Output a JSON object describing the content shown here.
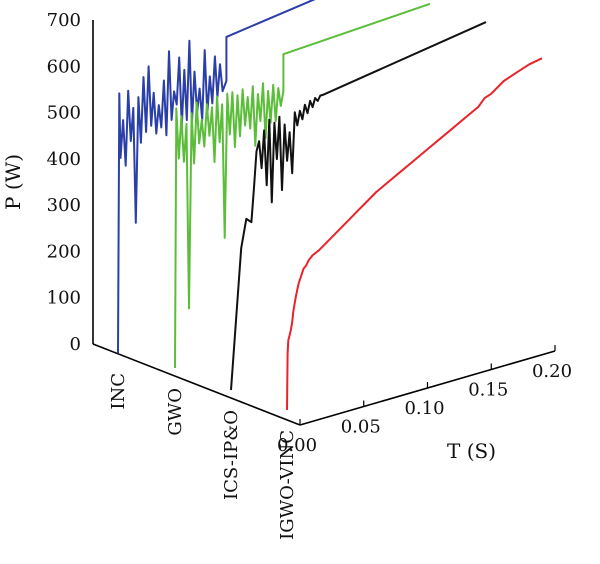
{
  "chart_data": {
    "type": "line",
    "projection": "3d-waterfall",
    "ylabel": "P (W)",
    "xlabel": "T (S)",
    "ylim": [
      0,
      700
    ],
    "xlim": [
      0,
      0.2
    ],
    "y_ticks": [
      "0",
      "100",
      "200",
      "300",
      "400",
      "500",
      "600",
      "700"
    ],
    "x_ticks": [
      "0.00",
      "0.05",
      "0.10",
      "0.15",
      "0.20"
    ],
    "categories": [
      "INC",
      "GWO",
      "ICS-IP&O",
      "IGWO-VINC"
    ],
    "series": [
      {
        "name": "INC",
        "color": "#2b3fa8",
        "x": [
          0,
          0.001,
          0.002,
          0.004,
          0.006,
          0.008,
          0.01,
          0.012,
          0.014,
          0.016,
          0.018,
          0.02,
          0.022,
          0.024,
          0.026,
          0.028,
          0.03,
          0.032,
          0.034,
          0.036,
          0.038,
          0.04,
          0.042,
          0.044,
          0.046,
          0.048,
          0.05,
          0.052,
          0.054,
          0.056,
          0.058,
          0.06,
          0.062,
          0.064,
          0.066,
          0.068,
          0.07,
          0.072,
          0.074,
          0.076,
          0.078,
          0.08,
          0.082,
          0.085,
          0.085,
          0.2
        ],
        "y": [
          0,
          560,
          420,
          500,
          400,
          560,
          450,
          520,
          270,
          540,
          440,
          580,
          460,
          600,
          470,
          540,
          450,
          510,
          460,
          560,
          440,
          620,
          470,
          530,
          500,
          600,
          450,
          570,
          460,
          630,
          450,
          560,
          470,
          520,
          450,
          600,
          460,
          540,
          480,
          580,
          490,
          560,
          500,
          520,
          615,
          658
        ]
      },
      {
        "name": "GWO",
        "color": "#5cbd3a",
        "x": [
          0,
          0.001,
          0.003,
          0.005,
          0.007,
          0.009,
          0.011,
          0.013,
          0.015,
          0.017,
          0.019,
          0.021,
          0.023,
          0.025,
          0.027,
          0.029,
          0.031,
          0.033,
          0.035,
          0.037,
          0.039,
          0.041,
          0.043,
          0.045,
          0.047,
          0.049,
          0.051,
          0.053,
          0.055,
          0.057,
          0.059,
          0.061,
          0.063,
          0.065,
          0.067,
          0.069,
          0.071,
          0.073,
          0.075,
          0.077,
          0.079,
          0.081,
          0.083,
          0.085,
          0.085,
          0.2
        ],
        "y": [
          0,
          560,
          450,
          540,
          440,
          520,
          120,
          540,
          430,
          560,
          470,
          520,
          460,
          550,
          480,
          540,
          420,
          560,
          460,
          540,
          250,
          560,
          470,
          560,
          440,
          550,
          460,
          560,
          480,
          540,
          470,
          560,
          430,
          540,
          480,
          560,
          440,
          540,
          470,
          550,
          470,
          540,
          500,
          530,
          610,
          627
        ]
      },
      {
        "name": "ICS-IP&O",
        "color": "#111111",
        "x": [
          0,
          0.004,
          0.008,
          0.012,
          0.016,
          0.018,
          0.02,
          0.022,
          0.024,
          0.026,
          0.028,
          0.03,
          0.032,
          0.034,
          0.036,
          0.038,
          0.04,
          0.042,
          0.044,
          0.046,
          0.048,
          0.05,
          0.052,
          0.054,
          0.056,
          0.058,
          0.06,
          0.062,
          0.064,
          0.066,
          0.068,
          0.07,
          0.072,
          0.2
        ],
        "y": [
          0,
          150,
          300,
          360,
          350,
          420,
          500,
          520,
          460,
          540,
          420,
          560,
          380,
          550,
          470,
          560,
          400,
          540,
          460,
          520,
          430,
          560,
          530,
          560,
          540,
          570,
          550,
          575,
          560,
          578,
          570,
          580,
          580,
          635
        ]
      },
      {
        "name": "IGWO-VINC",
        "color": "#e8232a",
        "x": [
          0,
          0.0005,
          0.001,
          0.002,
          0.003,
          0.004,
          0.005,
          0.007,
          0.009,
          0.011,
          0.013,
          0.015,
          0.017,
          0.02,
          0.025,
          0.03,
          0.035,
          0.04,
          0.045,
          0.05,
          0.055,
          0.06,
          0.065,
          0.07,
          0.08,
          0.09,
          0.1,
          0.11,
          0.12,
          0.13,
          0.14,
          0.15,
          0.155,
          0.16,
          0.17,
          0.18,
          0.19,
          0.2
        ],
        "y": [
          0,
          120,
          150,
          160,
          170,
          185,
          210,
          240,
          265,
          280,
          295,
          300,
          310,
          318,
          325,
          335,
          345,
          355,
          365,
          375,
          385,
          395,
          405,
          415,
          430,
          445,
          460,
          475,
          490,
          505,
          520,
          535,
          550,
          555,
          575,
          585,
          595,
          600
        ]
      }
    ]
  }
}
